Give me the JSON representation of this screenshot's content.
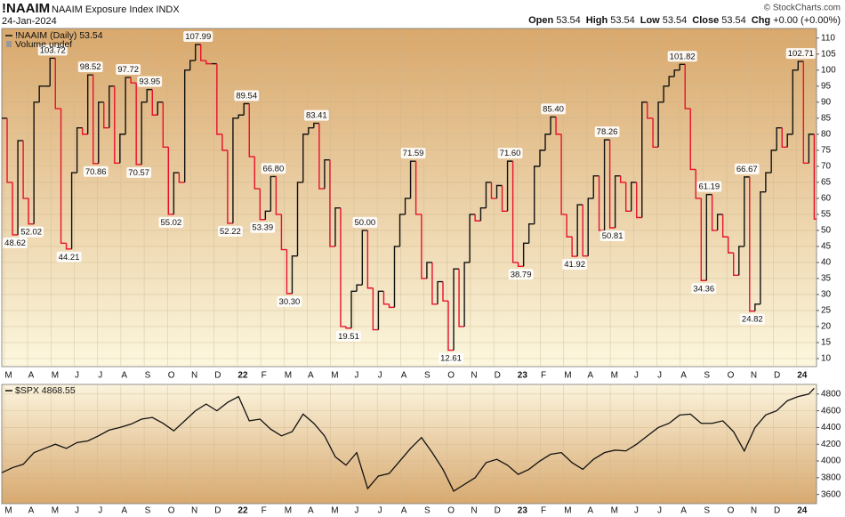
{
  "header": {
    "symbol": "!NAAIM",
    "name": "NAAIM Exposure Index",
    "exchange": "INDX",
    "date": "24-Jan-2024",
    "copyright": "© StockCharts.com",
    "quote": [
      {
        "label": "Open",
        "value": 53.54
      },
      {
        "label": "High",
        "value": 53.54
      },
      {
        "label": "Low",
        "value": 53.54
      },
      {
        "label": "Close",
        "value": 53.54
      },
      {
        "label": "Chg",
        "value": "+0.00 (+0.00%)"
      }
    ]
  },
  "chart_data": [
    {
      "type": "step",
      "legend": "!NAAIM (Daily) 53.54",
      "volume": "Volume undef",
      "up_color": "#111111",
      "down_color": "#e8102c",
      "grid": true,
      "x": [
        -0.11,
        0.12,
        0.35,
        0.58,
        0.81,
        1.04,
        1.27,
        1.5,
        1.73,
        1.96,
        2.19,
        2.43,
        2.66,
        2.89,
        3.12,
        3.35,
        3.58,
        3.81,
        4.04,
        4.27,
        4.5,
        4.73,
        4.96,
        5.2,
        5.43,
        5.66,
        5.89,
        6.12,
        6.35,
        6.58,
        6.81,
        7.04,
        7.27,
        7.5,
        7.74,
        7.97,
        8.2,
        8.43,
        8.66,
        8.89,
        9.12,
        9.35,
        9.58,
        9.81,
        10.05,
        10.28,
        10.51,
        10.74,
        10.97,
        11.2,
        11.43,
        11.66,
        11.89,
        12.12,
        12.35,
        12.58,
        12.82,
        13.05,
        13.28,
        13.51,
        13.74,
        13.97,
        14.2,
        14.43,
        14.66,
        14.89,
        15.12,
        15.36,
        15.59,
        15.82,
        16.05,
        16.28,
        16.51,
        16.74,
        16.97,
        17.2,
        17.43,
        17.66,
        17.9,
        18.13,
        18.36,
        18.59,
        18.82,
        19.05,
        19.28,
        19.51,
        19.74,
        19.97,
        20.2,
        20.44,
        20.67,
        20.9,
        21.13,
        21.36,
        21.59,
        21.82,
        22.05,
        22.28,
        22.51,
        22.74,
        22.98,
        23.21,
        23.44,
        23.67,
        23.9,
        24.13,
        24.36,
        24.59,
        24.82,
        25.05,
        25.28,
        25.52,
        25.75,
        25.98,
        26.21,
        26.44,
        26.67,
        26.9,
        27.13,
        27.36,
        27.59,
        27.83,
        28.06,
        28.29,
        28.52,
        28.75,
        28.98,
        29.21,
        29.44,
        29.67,
        29.9,
        30.13,
        30.37,
        30.6,
        30.83,
        31.06,
        31.29,
        31.52,
        31.75,
        31.98,
        32.21,
        32.44,
        32.67,
        32.91,
        33.14,
        33.37,
        33.6,
        33.83,
        34.06,
        34.29,
        34.52,
        34.75
      ],
      "values": [
        85,
        65,
        48.62,
        78,
        60,
        52.02,
        90,
        95,
        95,
        103.72,
        88,
        46,
        44.21,
        68,
        82,
        80,
        98.52,
        70.86,
        90,
        82,
        95,
        71,
        80,
        97.72,
        96,
        70.57,
        90,
        93.95,
        86,
        90,
        76,
        55.02,
        68,
        65,
        100,
        103,
        107.99,
        103,
        102,
        102,
        80,
        75,
        52.22,
        85,
        86,
        89.54,
        73,
        63,
        53.39,
        56,
        66.8,
        55,
        44,
        30.3,
        42,
        65,
        80,
        82,
        83.41,
        63,
        72,
        45,
        57,
        20,
        19.51,
        31,
        33,
        50,
        32,
        19,
        31,
        27,
        26,
        45,
        55,
        60,
        71.59,
        55,
        35,
        40,
        27,
        34,
        28,
        12.61,
        38,
        20,
        40,
        55,
        53,
        57,
        65,
        60,
        64,
        56,
        71.6,
        40,
        38.79,
        46,
        52,
        70,
        75,
        80,
        85.4,
        80,
        55,
        48,
        41.92,
        58,
        42,
        60,
        67,
        50,
        78.26,
        50.81,
        67,
        65,
        56,
        65,
        54,
        90,
        85,
        76,
        90,
        95,
        98,
        100,
        101.82,
        88,
        69,
        60,
        34.36,
        61.19,
        50,
        55,
        48,
        43,
        36,
        45,
        66.67,
        24.82,
        27,
        62,
        68,
        75,
        82,
        76,
        80,
        100,
        102.71,
        71,
        80,
        53.54
      ],
      "annotations": [
        {
          "x": 0.35,
          "y": 48.62
        },
        {
          "x": 1.04,
          "y": 52.02
        },
        {
          "x": 1.96,
          "y": 103.72
        },
        {
          "x": 2.66,
          "y": 44.21
        },
        {
          "x": 3.58,
          "y": 98.52
        },
        {
          "x": 3.81,
          "y": 70.86
        },
        {
          "x": 5.2,
          "y": 97.72
        },
        {
          "x": 5.66,
          "y": 70.57
        },
        {
          "x": 6.12,
          "y": 93.95
        },
        {
          "x": 7.04,
          "y": 55.02
        },
        {
          "x": 8.2,
          "y": 107.99
        },
        {
          "x": 9.58,
          "y": 52.22
        },
        {
          "x": 10.28,
          "y": 89.54
        },
        {
          "x": 10.97,
          "y": 53.39
        },
        {
          "x": 11.43,
          "y": 66.8,
          "label": "66.80"
        },
        {
          "x": 12.12,
          "y": 30.3,
          "label": "30.30"
        },
        {
          "x": 13.28,
          "y": 83.41
        },
        {
          "x": 14.66,
          "y": 19.51
        },
        {
          "x": 15.36,
          "y": 50,
          "label": "50.00"
        },
        {
          "x": 17.43,
          "y": 71.59
        },
        {
          "x": 19.05,
          "y": 12.61
        },
        {
          "x": 21.59,
          "y": 71.6,
          "label": "71.60"
        },
        {
          "x": 22.05,
          "y": 38.79
        },
        {
          "x": 23.44,
          "y": 85.4,
          "label": "85.40"
        },
        {
          "x": 24.36,
          "y": 41.92
        },
        {
          "x": 25.75,
          "y": 78.26
        },
        {
          "x": 25.98,
          "y": 50.81
        },
        {
          "x": 28.98,
          "y": 101.82
        },
        {
          "x": 29.9,
          "y": 34.36
        },
        {
          "x": 30.13,
          "y": 61.19
        },
        {
          "x": 31.75,
          "y": 66.67
        },
        {
          "x": 31.98,
          "y": 24.82
        },
        {
          "x": 34.06,
          "y": 102.71
        }
      ],
      "xlim": [
        -0.11,
        34.85
      ],
      "xticks": [
        {
          "value": 0,
          "label": "M"
        },
        {
          "value": 1,
          "label": "A"
        },
        {
          "value": 2,
          "label": "M"
        },
        {
          "value": 3,
          "label": "J"
        },
        {
          "value": 4,
          "label": "J"
        },
        {
          "value": 5,
          "label": "A"
        },
        {
          "value": 6,
          "label": "S"
        },
        {
          "value": 7,
          "label": "O"
        },
        {
          "value": 8,
          "label": "N"
        },
        {
          "value": 9,
          "label": "D"
        },
        {
          "value": 10,
          "label": "22"
        },
        {
          "value": 11,
          "label": "F"
        },
        {
          "value": 12,
          "label": "M"
        },
        {
          "value": 13,
          "label": "A"
        },
        {
          "value": 14,
          "label": "M"
        },
        {
          "value": 15,
          "label": "J"
        },
        {
          "value": 16,
          "label": "J"
        },
        {
          "value": 17,
          "label": "A"
        },
        {
          "value": 18,
          "label": "S"
        },
        {
          "value": 19,
          "label": "O"
        },
        {
          "value": 20,
          "label": "N"
        },
        {
          "value": 21,
          "label": "D"
        },
        {
          "value": 22,
          "label": "23"
        },
        {
          "value": 23,
          "label": "F"
        },
        {
          "value": 24,
          "label": "M"
        },
        {
          "value": 25,
          "label": "A"
        },
        {
          "value": 26,
          "label": "M"
        },
        {
          "value": 27,
          "label": "J"
        },
        {
          "value": 28,
          "label": "J"
        },
        {
          "value": 29,
          "label": "A"
        },
        {
          "value": 30,
          "label": "S"
        },
        {
          "value": 31,
          "label": "O"
        },
        {
          "value": 32,
          "label": "N"
        },
        {
          "value": 33,
          "label": "D"
        },
        {
          "value": 34,
          "label": "24"
        }
      ],
      "ylim": [
        7.5,
        113
      ],
      "yticks": [
        10,
        15,
        20,
        25,
        30,
        35,
        40,
        45,
        50,
        55,
        60,
        65,
        70,
        75,
        80,
        85,
        90,
        95,
        100,
        105,
        110
      ]
    },
    {
      "type": "line",
      "legend": "$SPX 4868.55",
      "color": "#111111",
      "grid": true,
      "x": [
        -0.11,
        0.35,
        0.81,
        1.27,
        1.73,
        2.19,
        2.66,
        3.12,
        3.58,
        4.04,
        4.5,
        4.96,
        5.43,
        5.89,
        6.35,
        6.81,
        7.27,
        7.74,
        8.2,
        8.66,
        9.12,
        9.58,
        10.05,
        10.51,
        10.97,
        11.43,
        11.89,
        12.35,
        12.82,
        13.28,
        13.74,
        14.2,
        14.66,
        15.12,
        15.59,
        16.05,
        16.51,
        16.97,
        17.43,
        17.9,
        18.36,
        18.82,
        19.28,
        19.74,
        20.2,
        20.67,
        21.13,
        21.59,
        22.05,
        22.51,
        22.98,
        23.44,
        23.9,
        24.36,
        24.82,
        25.28,
        25.75,
        26.21,
        26.67,
        27.13,
        27.59,
        28.06,
        28.52,
        28.98,
        29.44,
        29.9,
        30.37,
        30.83,
        31.29,
        31.75,
        32.21,
        32.67,
        33.14,
        33.6,
        34.06,
        34.52,
        34.75
      ],
      "values": [
        3860,
        3920,
        3960,
        4100,
        4150,
        4200,
        4150,
        4220,
        4240,
        4300,
        4370,
        4400,
        4440,
        4500,
        4520,
        4450,
        4360,
        4480,
        4600,
        4680,
        4600,
        4700,
        4770,
        4480,
        4500,
        4380,
        4300,
        4350,
        4560,
        4450,
        4300,
        4050,
        3950,
        4100,
        3670,
        3820,
        3850,
        4000,
        4150,
        4280,
        4100,
        3900,
        3640,
        3720,
        3800,
        3980,
        4020,
        3950,
        3840,
        3900,
        4000,
        4080,
        4100,
        3980,
        3900,
        4020,
        4100,
        4130,
        4120,
        4200,
        4300,
        4400,
        4450,
        4550,
        4560,
        4450,
        4450,
        4480,
        4350,
        4120,
        4400,
        4550,
        4600,
        4720,
        4770,
        4800,
        4868.55
      ],
      "xlim": [
        -0.11,
        34.85
      ],
      "xticks": [
        {
          "value": 0,
          "label": "M"
        },
        {
          "value": 1,
          "label": "A"
        },
        {
          "value": 2,
          "label": "M"
        },
        {
          "value": 3,
          "label": "J"
        },
        {
          "value": 4,
          "label": "J"
        },
        {
          "value": 5,
          "label": "A"
        },
        {
          "value": 6,
          "label": "S"
        },
        {
          "value": 7,
          "label": "O"
        },
        {
          "value": 8,
          "label": "N"
        },
        {
          "value": 9,
          "label": "D"
        },
        {
          "value": 10,
          "label": "22"
        },
        {
          "value": 11,
          "label": "F"
        },
        {
          "value": 12,
          "label": "M"
        },
        {
          "value": 13,
          "label": "A"
        },
        {
          "value": 14,
          "label": "M"
        },
        {
          "value": 15,
          "label": "J"
        },
        {
          "value": 16,
          "label": "J"
        },
        {
          "value": 17,
          "label": "A"
        },
        {
          "value": 18,
          "label": "S"
        },
        {
          "value": 19,
          "label": "O"
        },
        {
          "value": 20,
          "label": "N"
        },
        {
          "value": 21,
          "label": "D"
        },
        {
          "value": 22,
          "label": "23"
        },
        {
          "value": 23,
          "label": "F"
        },
        {
          "value": 24,
          "label": "M"
        },
        {
          "value": 25,
          "label": "A"
        },
        {
          "value": 26,
          "label": "M"
        },
        {
          "value": 27,
          "label": "J"
        },
        {
          "value": 28,
          "label": "J"
        },
        {
          "value": 29,
          "label": "A"
        },
        {
          "value": 30,
          "label": "S"
        },
        {
          "value": 31,
          "label": "O"
        },
        {
          "value": 32,
          "label": "N"
        },
        {
          "value": 33,
          "label": "D"
        },
        {
          "value": 34,
          "label": "24"
        }
      ],
      "ylim": [
        3490,
        4915
      ],
      "yticks": [
        3600,
        3800,
        4000,
        4200,
        4400,
        4600,
        4800
      ]
    }
  ]
}
